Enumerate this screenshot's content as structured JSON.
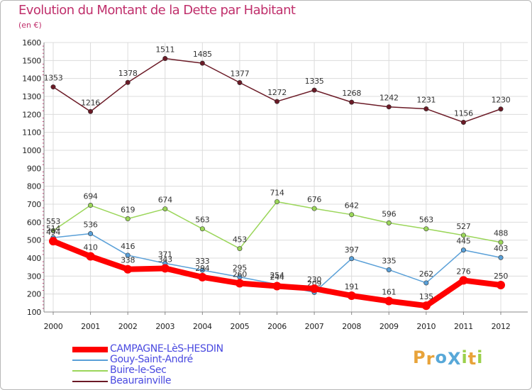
{
  "title": "Evolution du Montant de la Dette par Habitant",
  "subtitle": "(en €)",
  "logo_text": "ProXiti",
  "logo_colors": [
    "#e8a33a",
    "#e8a33a",
    "#58a8d8",
    "#58a8d8",
    "#9bd04a",
    "#e8a33a",
    "#9bd04a"
  ],
  "chart_data": {
    "type": "line",
    "x": [
      "2000",
      "2001",
      "2002",
      "2003",
      "2004",
      "2005",
      "2006",
      "2007",
      "2008",
      "2009",
      "2010",
      "2011",
      "2012"
    ],
    "ylim": [
      100,
      1600
    ],
    "yticks": [
      100,
      200,
      300,
      400,
      500,
      600,
      700,
      800,
      900,
      1000,
      1100,
      1200,
      1300,
      1400,
      1500,
      1600
    ],
    "grid": true,
    "legend_position": "bottom-left",
    "series": [
      {
        "name": "Beaurainville",
        "color": "#6b1a26",
        "width": 1.5,
        "values": [
          1353,
          1216,
          1378,
          1511,
          1485,
          1377,
          1272,
          1335,
          1268,
          1242,
          1231,
          1156,
          1230
        ]
      },
      {
        "name": "Buire-le-Sec",
        "color": "#9bd65a",
        "width": 1.5,
        "values": [
          553,
          694,
          619,
          674,
          563,
          453,
          714,
          676,
          642,
          596,
          563,
          527,
          488
        ]
      },
      {
        "name": "Gouy-Saint-André",
        "color": "#5aa0d8",
        "width": 1.5,
        "values": [
          514,
          536,
          416,
          371,
          333,
          295,
          254,
          209,
          397,
          335,
          262,
          445,
          403
        ]
      },
      {
        "name": "CAMPAGNE-LèS-HESDIN",
        "color": "#ff0000",
        "width": 8,
        "values": [
          494,
          410,
          338,
          343,
          294,
          260,
          244,
          230,
          191,
          161,
          135,
          276,
          250
        ]
      }
    ],
    "legend": [
      "CAMPAGNE-LèS-HESDIN",
      "Gouy-Saint-André",
      "Buire-le-Sec",
      "Beaurainville"
    ]
  }
}
